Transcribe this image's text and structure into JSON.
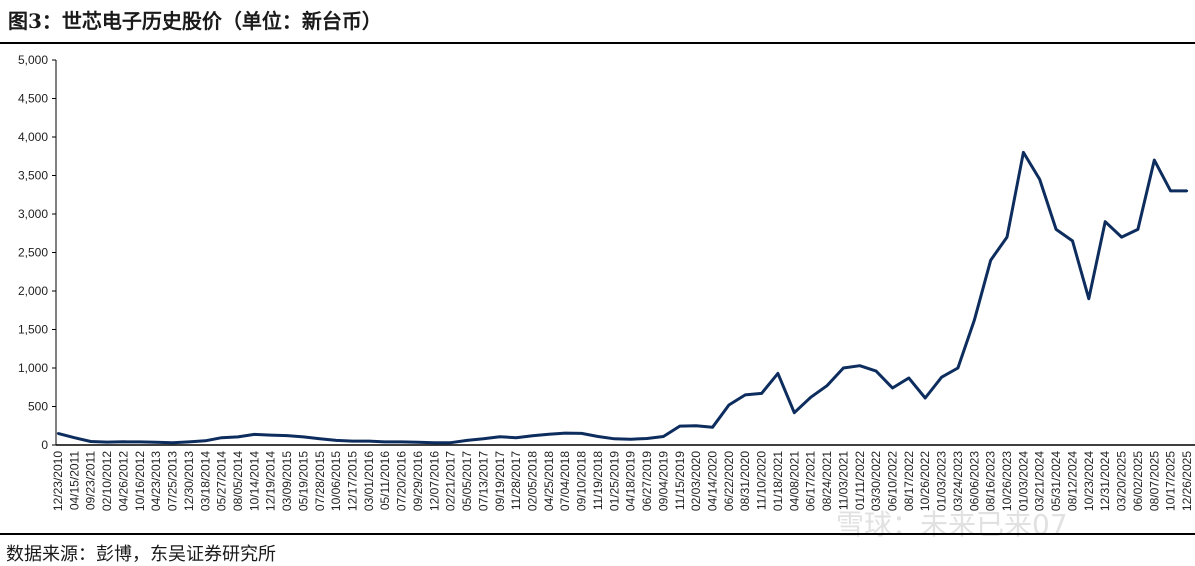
{
  "header": {
    "title": "图3：世芯电子历史股价（单位：新台币）"
  },
  "footer": {
    "source": "数据来源：彭博，东吴证券研究所",
    "watermark": "雪球：未来已来07"
  },
  "colors": {
    "line": "#0d2d5e",
    "axis": "#000000"
  },
  "chart_data": {
    "type": "line",
    "title": "图3：世芯电子历史股价（单位：新台币）",
    "xlabel": "",
    "ylabel": "",
    "ylim": [
      0,
      5000
    ],
    "yticks": [
      "0",
      "500",
      "1,000",
      "1,500",
      "2,000",
      "2,500",
      "3,000",
      "3,500",
      "4,000",
      "4,500",
      "5,000"
    ],
    "grid": false,
    "legend": "none",
    "categories": [
      "12/23/2010",
      "04/15/2011",
      "09/23/2011",
      "02/10/2012",
      "04/26/2012",
      "10/16/2012",
      "04/23/2013",
      "07/25/2013",
      "12/30/2013",
      "03/18/2014",
      "05/27/2014",
      "08/05/2014",
      "10/14/2014",
      "12/19/2014",
      "03/09/2015",
      "05/19/2015",
      "07/28/2015",
      "10/06/2015",
      "12/17/2015",
      "03/01/2016",
      "05/11/2016",
      "07/20/2016",
      "09/29/2016",
      "12/07/2016",
      "02/21/2017",
      "05/05/2017",
      "07/13/2017",
      "09/19/2017",
      "11/28/2017",
      "02/05/2018",
      "04/25/2018",
      "07/04/2018",
      "09/10/2018",
      "11/19/2018",
      "01/25/2019",
      "04/18/2019",
      "06/27/2019",
      "09/04/2019",
      "11/15/2019",
      "02/03/2020",
      "04/14/2020",
      "06/22/2020",
      "08/31/2020",
      "11/10/2020",
      "01/18/2021",
      "04/08/2021",
      "06/17/2021",
      "08/24/2021",
      "11/03/2021",
      "01/11/2022",
      "03/30/2022",
      "06/10/2022",
      "08/17/2022",
      "10/26/2022",
      "01/03/2023",
      "03/24/2023",
      "06/06/2023",
      "08/16/2023",
      "10/26/2023",
      "01/03/2024",
      "03/21/2024",
      "05/31/2024",
      "08/12/2024",
      "10/23/2024",
      "12/31/2024",
      "03/20/2025",
      "06/02/2025",
      "08/07/2025",
      "10/17/2025",
      "12/26/2025"
    ],
    "series": [
      {
        "values": [
          150,
          95,
          45,
          38,
          42,
          40,
          35,
          30,
          40,
          55,
          95,
          105,
          138,
          128,
          122,
          105,
          80,
          60,
          50,
          50,
          40,
          40,
          35,
          30,
          30,
          60,
          80,
          108,
          95,
          120,
          140,
          155,
          150,
          110,
          80,
          75,
          85,
          110,
          245,
          250,
          230,
          520,
          650,
          670,
          930,
          420,
          620,
          770,
          1000,
          1030,
          960,
          740,
          870,
          610,
          880,
          1000,
          1620,
          2400,
          2700,
          3800,
          3450,
          2800,
          2650,
          1900,
          2900,
          2700,
          2800,
          3700,
          3300,
          3300
        ]
      }
    ]
  }
}
